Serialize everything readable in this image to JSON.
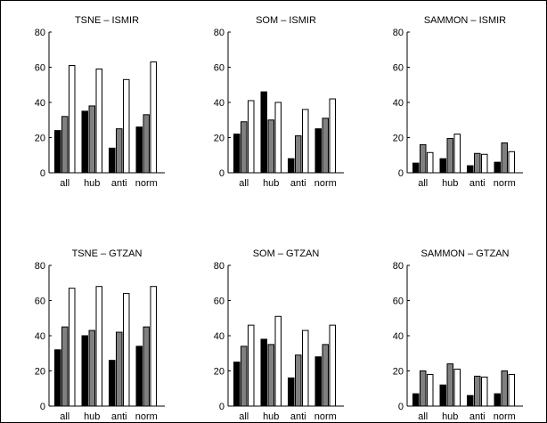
{
  "chart_data": [
    {
      "type": "bar",
      "title": "TSNE – ISMIR",
      "categories": [
        "all",
        "hub",
        "anti",
        "norm"
      ],
      "ylim": [
        0,
        80
      ],
      "yticks": [
        0,
        20,
        40,
        60,
        80
      ],
      "series": [
        {
          "color": "#000000",
          "values": [
            24,
            35,
            14,
            26
          ]
        },
        {
          "color": "#808080",
          "values": [
            32,
            38,
            25,
            33
          ]
        },
        {
          "color": "#ffffff",
          "values": [
            61,
            59,
            53,
            63
          ]
        }
      ]
    },
    {
      "type": "bar",
      "title": "SOM – ISMIR",
      "categories": [
        "all",
        "hub",
        "anti",
        "norm"
      ],
      "ylim": [
        0,
        80
      ],
      "yticks": [
        0,
        20,
        40,
        60,
        80
      ],
      "series": [
        {
          "color": "#000000",
          "values": [
            22,
            46,
            8,
            25
          ]
        },
        {
          "color": "#808080",
          "values": [
            29,
            30,
            21,
            31
          ]
        },
        {
          "color": "#ffffff",
          "values": [
            41,
            40,
            36,
            42
          ]
        }
      ]
    },
    {
      "type": "bar",
      "title": "SAMMON – ISMIR",
      "categories": [
        "all",
        "hub",
        "anti",
        "norm"
      ],
      "ylim": [
        0,
        80
      ],
      "yticks": [
        0,
        20,
        40,
        60,
        80
      ],
      "series": [
        {
          "color": "#000000",
          "values": [
            5.5,
            8,
            4,
            6
          ]
        },
        {
          "color": "#808080",
          "values": [
            16,
            19.5,
            11,
            17
          ]
        },
        {
          "color": "#ffffff",
          "values": [
            11.5,
            22,
            10.5,
            12
          ]
        }
      ]
    },
    {
      "type": "bar",
      "title": "TSNE – GTZAN",
      "categories": [
        "all",
        "hub",
        "anti",
        "norm"
      ],
      "ylim": [
        0,
        80
      ],
      "yticks": [
        0,
        20,
        40,
        60,
        80
      ],
      "series": [
        {
          "color": "#000000",
          "values": [
            32,
            40,
            26,
            34
          ]
        },
        {
          "color": "#808080",
          "values": [
            45,
            43,
            42,
            45
          ]
        },
        {
          "color": "#ffffff",
          "values": [
            67,
            68,
            64,
            68
          ]
        }
      ]
    },
    {
      "type": "bar",
      "title": "SOM – GTZAN",
      "categories": [
        "all",
        "hub",
        "anti",
        "norm"
      ],
      "ylim": [
        0,
        80
      ],
      "yticks": [
        0,
        20,
        40,
        60,
        80
      ],
      "series": [
        {
          "color": "#000000",
          "values": [
            25,
            38,
            16,
            28
          ]
        },
        {
          "color": "#808080",
          "values": [
            34,
            35,
            29,
            35
          ]
        },
        {
          "color": "#ffffff",
          "values": [
            46,
            51,
            43,
            46
          ]
        }
      ]
    },
    {
      "type": "bar",
      "title": "SAMMON – GTZAN",
      "categories": [
        "all",
        "hub",
        "anti",
        "norm"
      ],
      "ylim": [
        0,
        80
      ],
      "yticks": [
        0,
        20,
        40,
        60,
        80
      ],
      "series": [
        {
          "color": "#000000",
          "values": [
            7,
            12,
            6,
            7
          ]
        },
        {
          "color": "#808080",
          "values": [
            20,
            24,
            17,
            20
          ]
        },
        {
          "color": "#ffffff",
          "values": [
            18,
            21,
            16.5,
            18
          ]
        }
      ]
    }
  ]
}
